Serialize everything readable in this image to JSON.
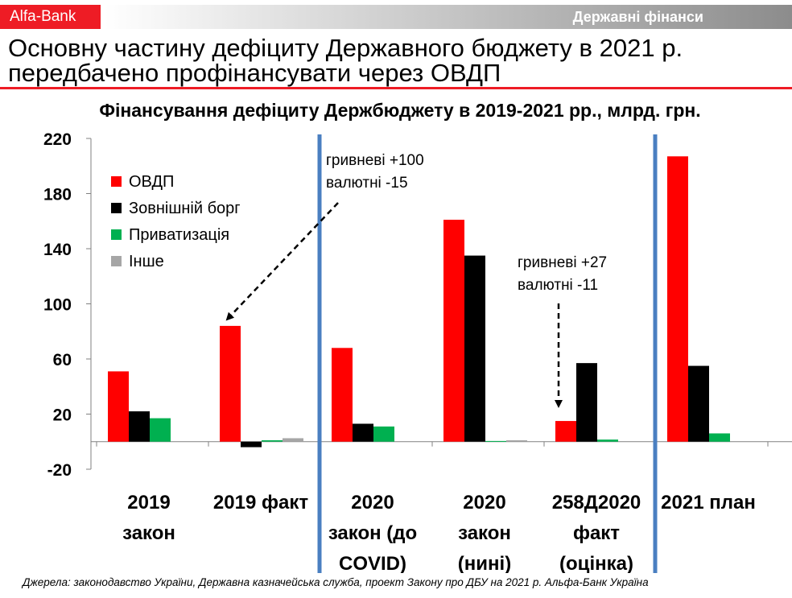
{
  "header": {
    "brand": "Alfa-Bank",
    "section": "Державні фінанси"
  },
  "headline": {
    "line1": "Основну частину дефіциту Державного бюджету в 2021 р.",
    "line2": "передбачено профінансувати через ОВДП"
  },
  "footer": {
    "source": "Джерела: законодавство України, Державна казначейська служба, проект Закону про ДБУ на 2021 р. Альфа-Банк Україна"
  },
  "colors": {
    "accent": "#ee1c25",
    "divider": "#4a7fc1"
  },
  "chart_data": {
    "type": "bar",
    "title": "Фінансування дефіциту Держбюджету в 2019-2021 рр., млрд. грн.",
    "categories": [
      [
        "2019",
        "закон"
      ],
      [
        "2019 факт"
      ],
      [
        "2020",
        "закон (до",
        "COVID)"
      ],
      [
        "2020",
        "закон",
        "(нині)"
      ],
      [
        "258Д2020",
        "факт",
        "(оцінка)"
      ],
      [
        "2021 план"
      ]
    ],
    "series": [
      {
        "name": "ОВДП",
        "color": "#ff0000",
        "values": [
          51,
          84,
          68,
          161,
          15,
          207
        ]
      },
      {
        "name": "Зовнішній борг",
        "color": "#000000",
        "values": [
          22,
          -4,
          13,
          135,
          57,
          55
        ]
      },
      {
        "name": "Приватизація",
        "color": "#00b050",
        "values": [
          17,
          1,
          11,
          0.5,
          1.5,
          6
        ]
      },
      {
        "name": "Інше",
        "color": "#a6a6a6",
        "values": [
          0,
          2.5,
          0,
          1,
          0,
          0
        ]
      }
    ],
    "ylim": [
      -20,
      220
    ],
    "yticks": [
      -20,
      20,
      60,
      100,
      140,
      180,
      220
    ],
    "legend_position": "top-left",
    "annotations": [
      {
        "lines": [
          "гривневі +100",
          "валютні -15"
        ],
        "points_to_category": 1
      },
      {
        "lines": [
          "гривневі +27",
          "валютні -11"
        ],
        "points_to_category": 4
      }
    ],
    "dividers_after_categories": [
      1,
      4
    ]
  }
}
